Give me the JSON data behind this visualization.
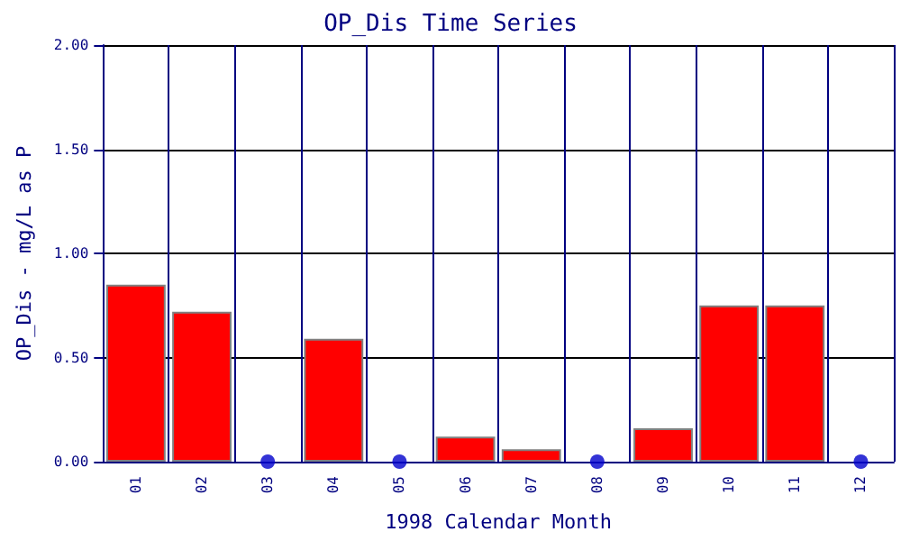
{
  "chart_data": {
    "type": "bar",
    "title": "OP_Dis Time Series",
    "xlabel": "1998 Calendar Month",
    "ylabel": "OP_Dis - mg/L as P",
    "categories": [
      "01",
      "02",
      "03",
      "04",
      "05",
      "06",
      "07",
      "08",
      "09",
      "10",
      "11",
      "12"
    ],
    "series": [
      {
        "color": "#ff0000",
        "values": [
          0.85,
          0.72,
          null,
          0.59,
          null,
          0.12,
          0.06,
          null,
          0.16,
          0.75,
          0.75,
          null
        ]
      },
      {
        "type": "scatter",
        "color": "#0000cc",
        "x": [
          "03",
          "05",
          "08",
          "12"
        ],
        "values": [
          0,
          0,
          0,
          0
        ]
      }
    ],
    "ylim": [
      0,
      2
    ],
    "yticks": [
      {
        "value": 0,
        "label": "0.00"
      },
      {
        "value": 0.5,
        "label": "0.50"
      },
      {
        "value": 1,
        "label": "1.00"
      },
      {
        "value": 1.5,
        "label": "1.50"
      },
      {
        "value": 2,
        "label": "2.00"
      }
    ],
    "grid": true,
    "marker": "circle"
  }
}
